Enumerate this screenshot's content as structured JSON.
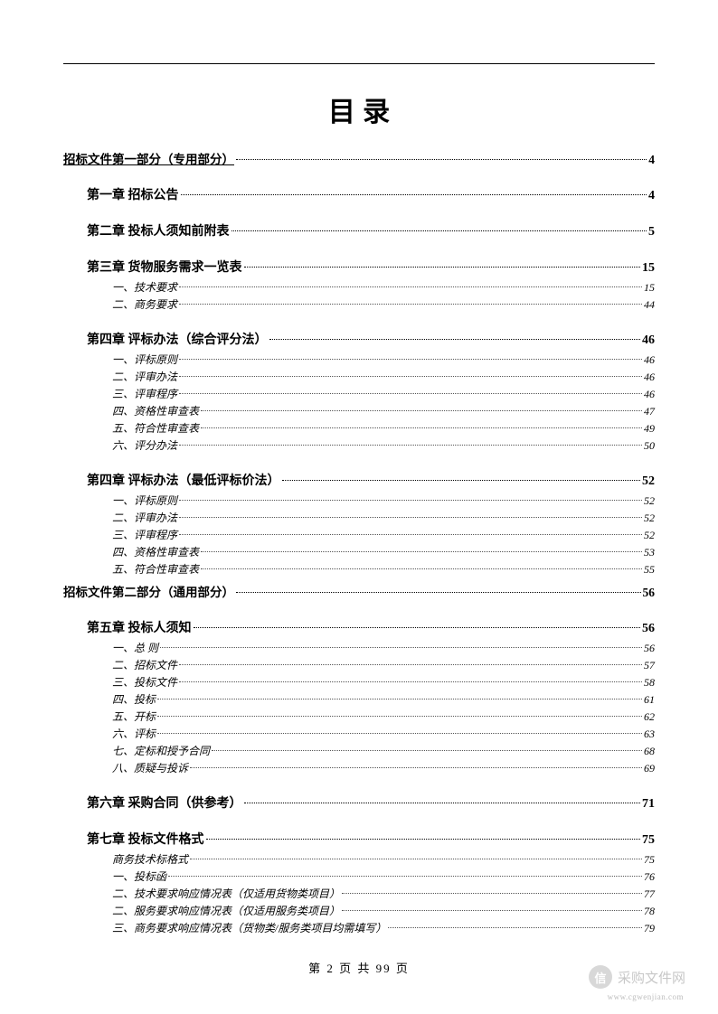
{
  "colors": {
    "text": "#000000",
    "background": "#ffffff",
    "watermark": "#9a9a9a",
    "watermark_badge": "#b9b9b9"
  },
  "title": "目 录",
  "footer": "第 2 页 共 99 页",
  "watermark": {
    "badge": "信",
    "text": "采购文件网",
    "url": "www.cgwenjian.com"
  },
  "toc": [
    {
      "level": 0,
      "label": "招标文件第一部分（专用部分）",
      "page": "4",
      "underlined": true
    },
    {
      "level": 1,
      "label": "第一章 招标公告",
      "page": "4"
    },
    {
      "level": 1,
      "label": "第二章 投标人须知前附表",
      "page": "5"
    },
    {
      "level": 1,
      "label": "第三章 货物服务需求一览表",
      "page": "15"
    },
    {
      "level": 2,
      "label": "一、技术要求",
      "page": "15"
    },
    {
      "level": 2,
      "label": "二、商务要求",
      "page": "44"
    },
    {
      "level": 1,
      "label": "第四章 评标办法（综合评分法）",
      "page": "46"
    },
    {
      "level": 2,
      "label": "一、评标原则",
      "page": "46"
    },
    {
      "level": 2,
      "label": "二、评审办法",
      "page": "46"
    },
    {
      "level": 2,
      "label": "三、评审程序",
      "page": "46"
    },
    {
      "level": 2,
      "label": "四、资格性审查表",
      "page": "47"
    },
    {
      "level": 2,
      "label": "五、符合性审查表",
      "page": "49"
    },
    {
      "level": 2,
      "label": "六、评分办法",
      "page": "50"
    },
    {
      "level": 1,
      "label": "第四章 评标办法（最低评标价法）",
      "page": "52"
    },
    {
      "level": 2,
      "label": "一、评标原则",
      "page": "52"
    },
    {
      "level": 2,
      "label": "二、评审办法",
      "page": "52"
    },
    {
      "level": 2,
      "label": "三、评审程序",
      "page": "52"
    },
    {
      "level": 2,
      "label": "四、资格性审查表",
      "page": "53"
    },
    {
      "level": 2,
      "label": "五、符合性审查表",
      "page": "55"
    },
    {
      "level": 0,
      "label": "招标文件第二部分（通用部分）",
      "page": "56"
    },
    {
      "level": 1,
      "label": "第五章 投标人须知",
      "page": "56"
    },
    {
      "level": 2,
      "label": "一、总 则",
      "page": "56"
    },
    {
      "level": 2,
      "label": "二、招标文件",
      "page": "57"
    },
    {
      "level": 2,
      "label": "三、投标文件",
      "page": "58"
    },
    {
      "level": 2,
      "label": "四、投标",
      "page": "61"
    },
    {
      "level": 2,
      "label": "五、开标",
      "page": "62"
    },
    {
      "level": 2,
      "label": "六、评标",
      "page": "63"
    },
    {
      "level": 2,
      "label": "七、定标和授予合同",
      "page": "68"
    },
    {
      "level": 2,
      "label": "八、质疑与投诉",
      "page": "69"
    },
    {
      "level": 1,
      "label": "第六章 采购合同（供参考）",
      "page": "71"
    },
    {
      "level": 1,
      "label": "第七章 投标文件格式",
      "page": "75"
    },
    {
      "level": 2,
      "label": "商务技术标格式",
      "page": "75"
    },
    {
      "level": 2,
      "label": "一、投标函",
      "page": "76"
    },
    {
      "level": 2,
      "label": "二、技术要求响应情况表（仅适用货物类项目）",
      "page": "77"
    },
    {
      "level": 2,
      "label": "二、服务要求响应情况表（仅适用服务类项目）",
      "page": "78"
    },
    {
      "level": 2,
      "label": "三、商务要求响应情况表（货物类/服务类项目均需填写）",
      "page": "79"
    }
  ]
}
